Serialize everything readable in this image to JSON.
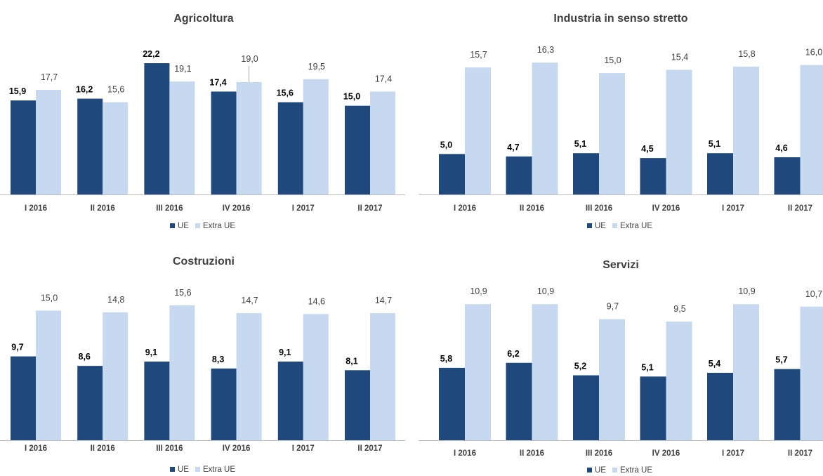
{
  "colors": {
    "ue": "#1F497D",
    "extra_ue": "#C6D9F0",
    "axis": "#BFBFBF",
    "leader": "#A6A6A6"
  },
  "chart_data": [
    {
      "type": "bar",
      "title": "Agricoltura",
      "categories": [
        "I 2016",
        "II 2016",
        "III 2016",
        "IV 2016",
        "I 2017",
        "II 2017"
      ],
      "series": [
        {
          "name": "UE",
          "values": [
            15.9,
            16.2,
            22.2,
            17.4,
            15.6,
            15.0
          ]
        },
        {
          "name": "Extra UE",
          "values": [
            17.7,
            15.6,
            19.1,
            19.0,
            19.5,
            17.4
          ]
        }
      ],
      "value_labels": [
        [
          "15,9",
          "16,2",
          "22,2",
          "17,4",
          "15,6",
          "15,0"
        ],
        [
          "17,7",
          "15,6",
          "19,1",
          "19,0",
          "19,5",
          "17,4"
        ]
      ],
      "legend": [
        "UE",
        "Extra UE"
      ],
      "legend_position": "bottom",
      "grid": false,
      "ylim": [
        0,
        26
      ]
    },
    {
      "type": "bar",
      "title": "Industria in senso stretto",
      "categories": [
        "I 2016",
        "II 2016",
        "III 2016",
        "IV 2016",
        "I 2017",
        "II 2017"
      ],
      "series": [
        {
          "name": "UE",
          "values": [
            5.0,
            4.7,
            5.1,
            4.5,
            5.1,
            4.6
          ]
        },
        {
          "name": "Extra UE",
          "values": [
            15.7,
            16.3,
            15.0,
            15.4,
            15.8,
            16.0
          ]
        }
      ],
      "value_labels": [
        [
          "5,0",
          "4,7",
          "5,1",
          "4,5",
          "5,1",
          "4,6"
        ],
        [
          "15,7",
          "16,3",
          "15,0",
          "15,4",
          "15,8",
          "16,0"
        ]
      ],
      "legend": [
        "UE",
        "Extra UE"
      ],
      "legend_position": "bottom",
      "grid": false,
      "ylim": [
        0,
        19
      ]
    },
    {
      "type": "bar",
      "title": "Costruzioni",
      "categories": [
        "I 2016",
        "II 2016",
        "III 2016",
        "IV 2016",
        "I 2017",
        "II 2017"
      ],
      "series": [
        {
          "name": "UE",
          "values": [
            9.7,
            8.6,
            9.1,
            8.3,
            9.1,
            8.1
          ]
        },
        {
          "name": "Extra UE",
          "values": [
            15.0,
            14.8,
            15.6,
            14.7,
            14.6,
            14.7
          ]
        }
      ],
      "value_labels": [
        [
          "9,7",
          "8,6",
          "9,1",
          "8,3",
          "9,1",
          "8,1"
        ],
        [
          "15,0",
          "14,8",
          "15,6",
          "14,7",
          "14,6",
          "14,7"
        ]
      ],
      "legend": [
        "UE",
        "Extra UE"
      ],
      "legend_position": "bottom",
      "grid": false,
      "ylim": [
        0,
        18.2
      ]
    },
    {
      "type": "bar",
      "title": "Servizi",
      "categories": [
        "I 2016",
        "II 2016",
        "III 2016",
        "IV 2016",
        "I 2017",
        "II 2017"
      ],
      "series": [
        {
          "name": "UE",
          "values": [
            5.8,
            6.2,
            5.2,
            5.1,
            5.4,
            5.7
          ]
        },
        {
          "name": "Extra UE",
          "values": [
            10.9,
            10.9,
            9.7,
            9.5,
            10.9,
            10.7
          ]
        }
      ],
      "value_labels": [
        [
          "5,8",
          "6,2",
          "5,2",
          "5,1",
          "5,4",
          "5,7"
        ],
        [
          "10,9",
          "10,9",
          "9,7",
          "9,5",
          "10,9",
          "10,7"
        ]
      ],
      "legend": [
        "UE",
        "Extra UE"
      ],
      "legend_position": "bottom",
      "grid": false,
      "ylim": [
        0,
        12.6
      ]
    }
  ]
}
